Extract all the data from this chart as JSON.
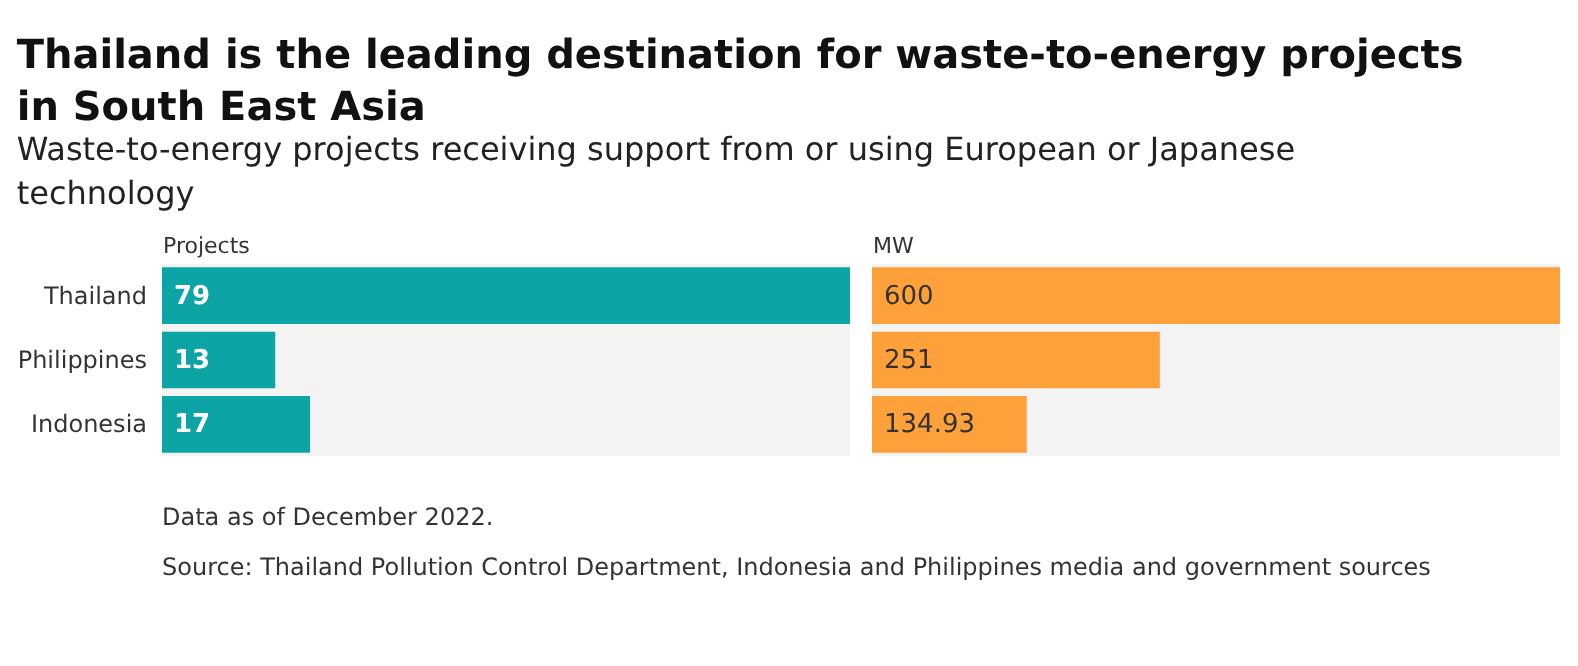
{
  "chart_data": [
    {
      "type": "bar",
      "orientation": "horizontal",
      "title": "Thailand is the leading destination for waste-to-energy projects in South East Asia",
      "subtitle": "Waste-to-energy projects receiving support from or using European or Japanese technology",
      "xlabel": "Projects",
      "categories": [
        "Thailand",
        "Philippines",
        "Indonesia"
      ],
      "values": [
        79,
        13,
        17
      ],
      "color": "#0ca4a5",
      "xlim": [
        0,
        79
      ],
      "data_labels": true,
      "tick_labels": "y",
      "grid": false,
      "annotations": [
        "Data as of December 2022.",
        "Source: Thailand Pollution Control Department, Indonesia and Philippines media and government sources"
      ]
    },
    {
      "type": "bar",
      "orientation": "horizontal",
      "xlabel": "MW",
      "categories": [
        null,
        null,
        null
      ],
      "values": [
        600,
        251,
        134.93
      ],
      "color": "#ffa13b",
      "xlim": [
        0,
        600
      ],
      "data_labels": true,
      "tick_labels": false,
      "grid": false
    }
  ]
}
